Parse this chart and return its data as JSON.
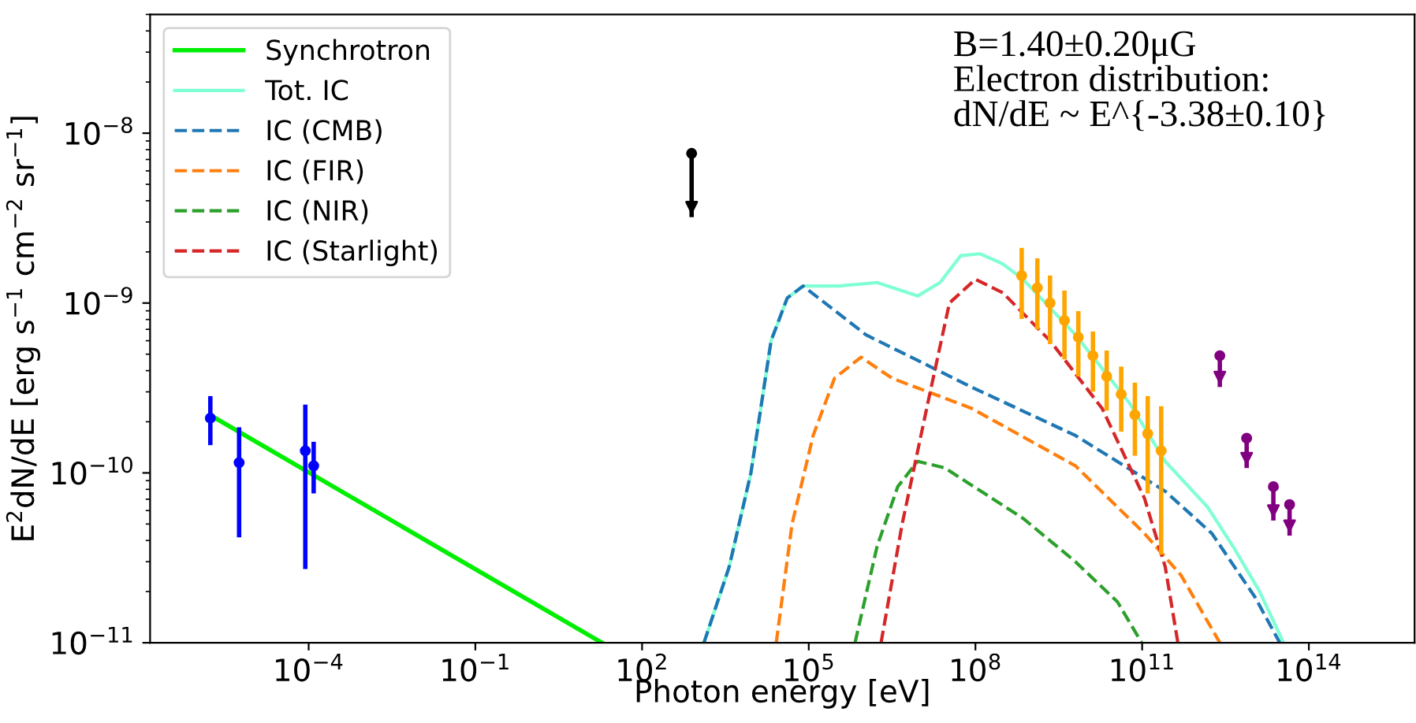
{
  "chart_data": {
    "type": "line",
    "xlabel": "Photon energy [eV]",
    "ylabel": "E$^{2}$dN/dE [erg s$^{−1}$ cm$^{−2}$ sr$^{−1}$]",
    "log": "xy",
    "xlim": [
      1.4e-07,
      8000000000000000.0
    ],
    "ylim": [
      1e-11,
      5e-08
    ],
    "xticks": [
      {
        "value": 0.0001,
        "label": "10$^{−4}$"
      },
      {
        "value": 0.1,
        "label": "10$^{−1}$"
      },
      {
        "value": 100.0,
        "label": "10$^{2}$"
      },
      {
        "value": 100000.0,
        "label": "10$^{5}$"
      },
      {
        "value": 100000000.0,
        "label": "10$^{8}$"
      },
      {
        "value": 100000000000.0,
        "label": "10$^{11}$"
      },
      {
        "value": 100000000000000.0,
        "label": "10$^{14}$"
      }
    ],
    "yticks": [
      {
        "value": 1e-11,
        "label": "10$^{−11}$"
      },
      {
        "value": 1e-10,
        "label": "10$^{−10}$"
      },
      {
        "value": 1e-09,
        "label": "10$^{−9}$"
      },
      {
        "value": 1e-08,
        "label": "10$^{−8}$"
      }
    ],
    "legend": "top left",
    "grid": false,
    "annotations": [
      "B=1.40±0.20μG\nElectron distribution:\ndN/dE ~ E^{-3.38±0.10}"
    ],
    "series": [
      {
        "name": "Synchrotron",
        "color": "#00ee00",
        "line_style": "solid",
        "x": [
          2.1e-06,
          19
        ],
        "values": [
          2.1e-10,
          1e-11
        ]
      },
      {
        "name": "Tot. IC",
        "color": "#7fffd4",
        "line_style": "solid",
        "x": [
          1300,
          3700,
          9100,
          21000.0,
          41000.0,
          79000.0,
          350000.0,
          1700000.0,
          9100000.0,
          23000000.0,
          54000000.0,
          120000000.0,
          310000000.0,
          720000000.0,
          6300000000.0,
          58000000000.0,
          260000000000.0,
          1500000000000.0,
          4300000000000.0,
          13000000000000.0,
          35000000000000.0
        ],
        "values": [
          1e-11,
          2.8e-11,
          1e-10,
          6e-10,
          1.07e-09,
          1.26e-09,
          1.26e-09,
          1.32e-09,
          1.1e-09,
          1.32e-09,
          1.9e-09,
          1.95e-09,
          1.7e-09,
          1.38e-09,
          6.5e-10,
          2.6e-10,
          1.17e-10,
          6.3e-11,
          3.7e-11,
          2e-11,
          1e-11
        ]
      },
      {
        "name": "IC (CMB)",
        "color": "#1f77b4",
        "line_style": "dashed",
        "x": [
          1300,
          3700,
          9100,
          21000.0,
          41000.0,
          79000.0,
          1070000.0,
          85000000.0,
          6300000000.0,
          260000000000.0,
          1800000000000.0,
          10700000000000.0,
          30000000000000.0
        ],
        "values": [
          1e-11,
          2.8e-11,
          1e-10,
          6e-10,
          1.07e-09,
          1.26e-09,
          6.5e-10,
          3.2e-10,
          1.66e-10,
          7.8e-11,
          4.4e-11,
          1.86e-11,
          1e-11
        ]
      },
      {
        "name": "IC (FIR)",
        "color": "#ff7f0e",
        "line_style": "dashed",
        "x": [
          26000.0,
          50000.0,
          120000.0,
          290000.0,
          870000.0,
          3200000.0,
          85000000.0,
          6300000000.0,
          110000000000.0,
          500000000000.0,
          2500000000000.0
        ],
        "values": [
          1e-11,
          5e-11,
          1.66e-10,
          3.6e-10,
          4.8e-10,
          3.6e-10,
          2.4e-10,
          1.1e-10,
          4.4e-11,
          2.5e-11,
          1e-11
        ]
      },
      {
        "name": "IC (NIR)",
        "color": "#2ca02c",
        "line_style": "dashed",
        "x": [
          680000.0,
          1700000.0,
          4000000.0,
          9100000.0,
          28000000.0,
          720000000.0,
          6300000000.0,
          36000000000.0,
          98000000000.0
        ],
        "values": [
          1e-11,
          3.7e-11,
          8.3e-11,
          1.17e-10,
          1.07e-10,
          5.4e-11,
          3e-11,
          1.74e-11,
          1e-11
        ]
      },
      {
        "name": "IC (Starlight)",
        "color": "#d62728",
        "line_style": "dashed",
        "x": [
          2000000.0,
          4800000.0,
          14500000.0,
          34000000.0,
          100000000.0,
          310000000.0,
          2200000000.0,
          19000000000.0,
          110000000000.0,
          260000000000.0,
          440000000000.0
        ],
        "values": [
          1e-11,
          5e-11,
          2.75e-10,
          1e-09,
          1.38e-09,
          1.15e-09,
          6e-10,
          2.4e-10,
          7.1e-11,
          2.8e-11,
          1e-11
        ]
      },
      {
        "type": "scatter",
        "color": "#0000ff",
        "marker": "circle",
        "x": [
          1.7e-06,
          5.6e-06,
          8.7e-05,
          0.000123
        ],
        "values": [
          2.1e-10,
          1.15e-10,
          1.35e-10,
          1.1e-10
        ],
        "errors": [
          [
            1.5e-10,
            2.75e-10
          ],
          [
            4.3e-11,
            1.8e-10
          ],
          [
            2.8e-11,
            2.45e-10
          ],
          [
            7.8e-11,
            1.48e-10
          ]
        ]
      },
      {
        "type": "scatter",
        "color": "#ffa500",
        "marker": "circle",
        "x": [
          680000000.0,
          1300000000.0,
          2200000000.0,
          4000000000.0,
          7100000000.0,
          13000000000.0,
          23000000000.0,
          42000000000.0,
          74000000000.0,
          126000000000.0,
          220000000000.0
        ],
        "values": [
          1.45e-09,
          1.23e-09,
          1e-09,
          7.9e-10,
          6.3e-10,
          4.9e-10,
          3.7e-10,
          2.9e-10,
          2.2e-10,
          1.7e-10,
          1.35e-10
        ],
        "errors": [
          [
            8.3e-10,
            2.05e-09
          ],
          [
            7.2e-10,
            1.78e-09
          ],
          [
            5.9e-10,
            1.41e-09
          ],
          [
            4.8e-10,
            1.15e-09
          ],
          [
            3.8e-10,
            8.7e-10
          ],
          [
            3.1e-10,
            6.6e-10
          ],
          [
            2.4e-10,
            5.1e-10
          ],
          [
            1.8e-10,
            4.1e-10
          ],
          [
            1.3e-10,
            3.3e-10
          ],
          [
            7.8e-11,
            2.75e-10
          ],
          [
            3.4e-11,
            2.4e-10
          ]
        ]
      },
      {
        "type": "scatter",
        "color": "#000000",
        "marker": "circle",
        "x": [
          780
        ],
        "values": [
          7.6e-09
        ],
        "errors": [
          [
            3.3e-09,
            7.6e-09
          ]
        ]
      },
      {
        "type": "scatter",
        "color": "#800080",
        "marker": "circle",
        "x": [
          2500000000000.0,
          7600000000000.0,
          23000000000000.0,
          45000000000000.0
        ],
        "values": [
          4.9e-10,
          1.6e-10,
          8.3e-11,
          6.5e-11
        ],
        "errors": [
          [
            3.3e-10,
            4.9e-10
          ],
          [
            1.1e-10,
            1.6e-10
          ],
          [
            5.4e-11,
            8.3e-11
          ],
          [
            4.4e-11,
            6.5e-11
          ]
        ]
      }
    ]
  }
}
